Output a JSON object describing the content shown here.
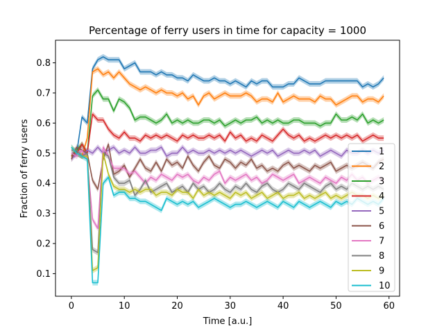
{
  "chart_data": {
    "type": "line",
    "title": "Percentage of ferry users in time for capacity = 1000",
    "xlabel": "Time [a.u.]",
    "ylabel": "Fraction of ferry users",
    "xlim": [
      -3,
      62
    ],
    "ylim": [
      0.025,
      0.875
    ],
    "xticks": [
      0,
      10,
      20,
      30,
      40,
      50,
      60
    ],
    "yticks": [
      0.1,
      0.2,
      0.3,
      0.4,
      0.5,
      0.6,
      0.7,
      0.8
    ],
    "grid": false,
    "legend_position": "center-right",
    "x": [
      0,
      1,
      2,
      3,
      4,
      5,
      6,
      7,
      8,
      9,
      10,
      11,
      12,
      13,
      14,
      15,
      16,
      17,
      18,
      19,
      20,
      21,
      22,
      23,
      24,
      25,
      26,
      27,
      28,
      29,
      30,
      31,
      32,
      33,
      34,
      35,
      36,
      37,
      38,
      39,
      40,
      41,
      42,
      43,
      44,
      45,
      46,
      47,
      48,
      49,
      50,
      51,
      52,
      53,
      54,
      55,
      56,
      57,
      58,
      59
    ],
    "series": [
      {
        "name": "1",
        "color": "#1f77b4",
        "values": [
          0.49,
          0.5,
          0.62,
          0.6,
          0.78,
          0.81,
          0.82,
          0.81,
          0.81,
          0.81,
          0.78,
          0.79,
          0.8,
          0.77,
          0.77,
          0.77,
          0.76,
          0.77,
          0.76,
          0.76,
          0.75,
          0.75,
          0.74,
          0.76,
          0.75,
          0.74,
          0.74,
          0.75,
          0.74,
          0.74,
          0.73,
          0.74,
          0.73,
          0.72,
          0.74,
          0.73,
          0.74,
          0.74,
          0.72,
          0.72,
          0.72,
          0.73,
          0.73,
          0.75,
          0.74,
          0.73,
          0.73,
          0.73,
          0.74,
          0.74,
          0.74,
          0.74,
          0.74,
          0.74,
          0.74,
          0.72,
          0.73,
          0.72,
          0.73,
          0.75
        ]
      },
      {
        "name": "2",
        "color": "#ff7f0e",
        "values": [
          0.49,
          0.5,
          0.49,
          0.55,
          0.77,
          0.78,
          0.76,
          0.77,
          0.75,
          0.77,
          0.75,
          0.73,
          0.72,
          0.71,
          0.72,
          0.71,
          0.7,
          0.71,
          0.7,
          0.7,
          0.69,
          0.7,
          0.68,
          0.69,
          0.66,
          0.69,
          0.7,
          0.68,
          0.69,
          0.7,
          0.69,
          0.69,
          0.69,
          0.7,
          0.69,
          0.67,
          0.68,
          0.68,
          0.67,
          0.7,
          0.67,
          0.68,
          0.69,
          0.68,
          0.68,
          0.68,
          0.67,
          0.69,
          0.68,
          0.68,
          0.66,
          0.67,
          0.68,
          0.69,
          0.69,
          0.67,
          0.68,
          0.68,
          0.67,
          0.69
        ]
      },
      {
        "name": "3",
        "color": "#2ca02c",
        "values": [
          0.49,
          0.51,
          0.53,
          0.5,
          0.69,
          0.71,
          0.68,
          0.68,
          0.64,
          0.68,
          0.67,
          0.65,
          0.61,
          0.62,
          0.62,
          0.61,
          0.6,
          0.61,
          0.63,
          0.6,
          0.61,
          0.6,
          0.61,
          0.6,
          0.6,
          0.61,
          0.61,
          0.6,
          0.61,
          0.59,
          0.6,
          0.61,
          0.6,
          0.61,
          0.61,
          0.62,
          0.6,
          0.61,
          0.6,
          0.61,
          0.6,
          0.6,
          0.61,
          0.61,
          0.6,
          0.6,
          0.6,
          0.59,
          0.6,
          0.6,
          0.63,
          0.61,
          0.61,
          0.62,
          0.61,
          0.63,
          0.6,
          0.61,
          0.6,
          0.61
        ]
      },
      {
        "name": "4",
        "color": "#d62728",
        "values": [
          0.49,
          0.5,
          0.53,
          0.5,
          0.63,
          0.61,
          0.61,
          0.58,
          0.56,
          0.55,
          0.57,
          0.55,
          0.55,
          0.54,
          0.56,
          0.55,
          0.56,
          0.55,
          0.56,
          0.55,
          0.54,
          0.56,
          0.55,
          0.56,
          0.55,
          0.55,
          0.56,
          0.55,
          0.56,
          0.54,
          0.57,
          0.55,
          0.56,
          0.54,
          0.55,
          0.54,
          0.56,
          0.55,
          0.54,
          0.56,
          0.58,
          0.56,
          0.55,
          0.56,
          0.54,
          0.55,
          0.54,
          0.55,
          0.56,
          0.55,
          0.56,
          0.55,
          0.56,
          0.55,
          0.56,
          0.54,
          0.55,
          0.56,
          0.55,
          0.55
        ]
      },
      {
        "name": "5",
        "color": "#9467bd",
        "values": [
          0.48,
          0.5,
          0.49,
          0.51,
          0.5,
          0.52,
          0.5,
          0.51,
          0.52,
          0.5,
          0.51,
          0.5,
          0.52,
          0.5,
          0.5,
          0.51,
          0.51,
          0.52,
          0.49,
          0.5,
          0.5,
          0.52,
          0.5,
          0.51,
          0.5,
          0.5,
          0.51,
          0.5,
          0.51,
          0.5,
          0.51,
          0.5,
          0.51,
          0.5,
          0.49,
          0.5,
          0.51,
          0.5,
          0.51,
          0.49,
          0.5,
          0.51,
          0.5,
          0.5,
          0.51,
          0.5,
          0.51,
          0.49,
          0.5,
          0.51,
          0.5,
          0.49,
          0.51,
          0.5,
          0.5,
          0.51,
          0.5,
          0.51,
          0.5,
          0.51
        ]
      },
      {
        "name": "6",
        "color": "#8c564b",
        "values": [
          0.48,
          0.52,
          0.51,
          0.5,
          0.41,
          0.38,
          0.48,
          0.53,
          0.43,
          0.44,
          0.46,
          0.42,
          0.45,
          0.48,
          0.45,
          0.44,
          0.47,
          0.44,
          0.48,
          0.46,
          0.47,
          0.45,
          0.49,
          0.46,
          0.44,
          0.47,
          0.49,
          0.46,
          0.45,
          0.48,
          0.47,
          0.45,
          0.47,
          0.46,
          0.48,
          0.45,
          0.46,
          0.44,
          0.45,
          0.44,
          0.46,
          0.47,
          0.45,
          0.46,
          0.45,
          0.44,
          0.46,
          0.45,
          0.46,
          0.47,
          0.44,
          0.45,
          0.46,
          0.45,
          0.46,
          0.47,
          0.46,
          0.45,
          0.47,
          0.48
        ]
      },
      {
        "name": "7",
        "color": "#e377c2",
        "values": [
          0.5,
          0.49,
          0.51,
          0.48,
          0.28,
          0.25,
          0.52,
          0.49,
          0.45,
          0.45,
          0.45,
          0.43,
          0.44,
          0.42,
          0.4,
          0.42,
          0.41,
          0.43,
          0.42,
          0.41,
          0.43,
          0.42,
          0.43,
          0.41,
          0.4,
          0.42,
          0.41,
          0.43,
          0.44,
          0.4,
          0.42,
          0.41,
          0.42,
          0.43,
          0.41,
          0.42,
          0.4,
          0.41,
          0.43,
          0.42,
          0.41,
          0.42,
          0.43,
          0.4,
          0.41,
          0.42,
          0.41,
          0.4,
          0.42,
          0.41,
          0.4,
          0.42,
          0.41,
          0.43,
          0.41,
          0.42,
          0.4,
          0.41,
          0.42,
          0.41
        ]
      },
      {
        "name": "8",
        "color": "#7f7f7f",
        "values": [
          0.51,
          0.51,
          0.49,
          0.5,
          0.18,
          0.17,
          0.5,
          0.49,
          0.42,
          0.4,
          0.4,
          0.41,
          0.36,
          0.38,
          0.41,
          0.37,
          0.38,
          0.39,
          0.4,
          0.37,
          0.38,
          0.39,
          0.37,
          0.4,
          0.38,
          0.39,
          0.37,
          0.38,
          0.4,
          0.38,
          0.37,
          0.39,
          0.38,
          0.4,
          0.38,
          0.37,
          0.39,
          0.4,
          0.38,
          0.37,
          0.38,
          0.4,
          0.39,
          0.38,
          0.4,
          0.39,
          0.38,
          0.37,
          0.39,
          0.4,
          0.38,
          0.39,
          0.38,
          0.4,
          0.39,
          0.38,
          0.39,
          0.38,
          0.39,
          0.38
        ]
      },
      {
        "name": "9",
        "color": "#bcbd22",
        "values": [
          0.52,
          0.5,
          0.49,
          0.49,
          0.11,
          0.12,
          0.5,
          0.43,
          0.39,
          0.38,
          0.38,
          0.37,
          0.38,
          0.37,
          0.38,
          0.38,
          0.36,
          0.37,
          0.37,
          0.36,
          0.38,
          0.37,
          0.37,
          0.35,
          0.38,
          0.36,
          0.37,
          0.36,
          0.37,
          0.36,
          0.35,
          0.37,
          0.36,
          0.37,
          0.35,
          0.36,
          0.37,
          0.35,
          0.36,
          0.37,
          0.35,
          0.36,
          0.36,
          0.37,
          0.35,
          0.36,
          0.35,
          0.36,
          0.37,
          0.35,
          0.36,
          0.35,
          0.36,
          0.37,
          0.36,
          0.36,
          0.35,
          0.36,
          0.35,
          0.36
        ]
      },
      {
        "name": "10",
        "color": "#17becf",
        "values": [
          0.52,
          0.5,
          0.49,
          0.48,
          0.07,
          0.07,
          0.4,
          0.42,
          0.36,
          0.37,
          0.37,
          0.35,
          0.35,
          0.34,
          0.34,
          0.33,
          0.32,
          0.31,
          0.35,
          0.34,
          0.33,
          0.34,
          0.33,
          0.34,
          0.32,
          0.33,
          0.34,
          0.35,
          0.34,
          0.33,
          0.32,
          0.33,
          0.33,
          0.34,
          0.33,
          0.32,
          0.33,
          0.34,
          0.33,
          0.32,
          0.34,
          0.33,
          0.32,
          0.34,
          0.33,
          0.32,
          0.33,
          0.34,
          0.33,
          0.32,
          0.34,
          0.33,
          0.34,
          0.33,
          0.35,
          0.34,
          0.33,
          0.34,
          0.33,
          0.35
        ]
      }
    ]
  }
}
